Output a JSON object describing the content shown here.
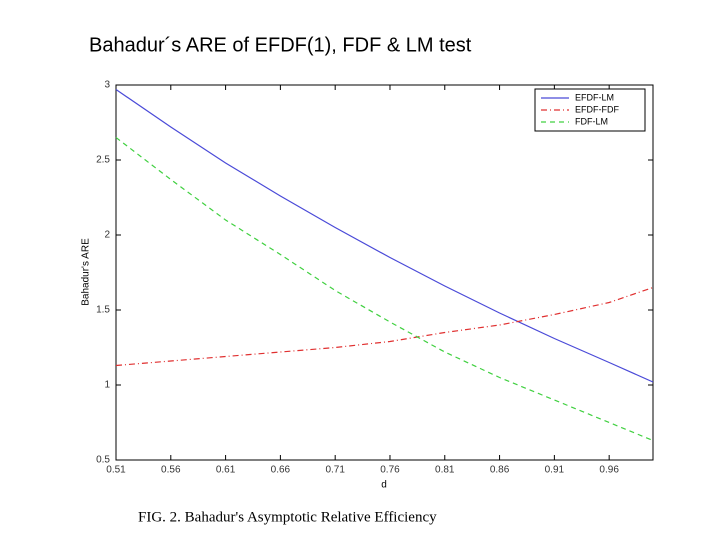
{
  "chart_data": {
    "type": "line",
    "title": "Bahadur´s ARE of EFDF(1), FDF & LM test",
    "caption": "FIG. 2. Bahadur's Asymptotic Relative Efficiency",
    "x_label": "d",
    "y_label": "Bahadur's ARE",
    "x": [
      0.51,
      0.56,
      0.61,
      0.66,
      0.71,
      0.76,
      0.81,
      0.86,
      0.91,
      0.96,
      1.0
    ],
    "series": [
      {
        "name": "EFDF-LM",
        "color": "#4a4ad8",
        "dash": "none",
        "values": [
          2.97,
          2.72,
          2.48,
          2.26,
          2.05,
          1.85,
          1.66,
          1.48,
          1.31,
          1.15,
          1.02
        ]
      },
      {
        "name": "EFDF-FDF",
        "color": "#e03030",
        "dash": "6 3 1 3",
        "values": [
          1.13,
          1.16,
          1.19,
          1.22,
          1.25,
          1.29,
          1.35,
          1.4,
          1.47,
          1.55,
          1.65
        ]
      },
      {
        "name": "FDF-LM",
        "color": "#40d040",
        "dash": "5 4",
        "values": [
          2.65,
          2.37,
          2.1,
          1.87,
          1.63,
          1.42,
          1.22,
          1.05,
          0.9,
          0.75,
          0.63
        ]
      }
    ],
    "xlim": [
      0.51,
      1.0
    ],
    "xticks": [
      0.51,
      0.56,
      0.61,
      0.66,
      0.71,
      0.76,
      0.81,
      0.86,
      0.91,
      0.96
    ],
    "ylim": [
      0.5,
      3
    ],
    "yticks": [
      0.5,
      1,
      1.5,
      2,
      2.5,
      3
    ],
    "legend": "top-right"
  }
}
